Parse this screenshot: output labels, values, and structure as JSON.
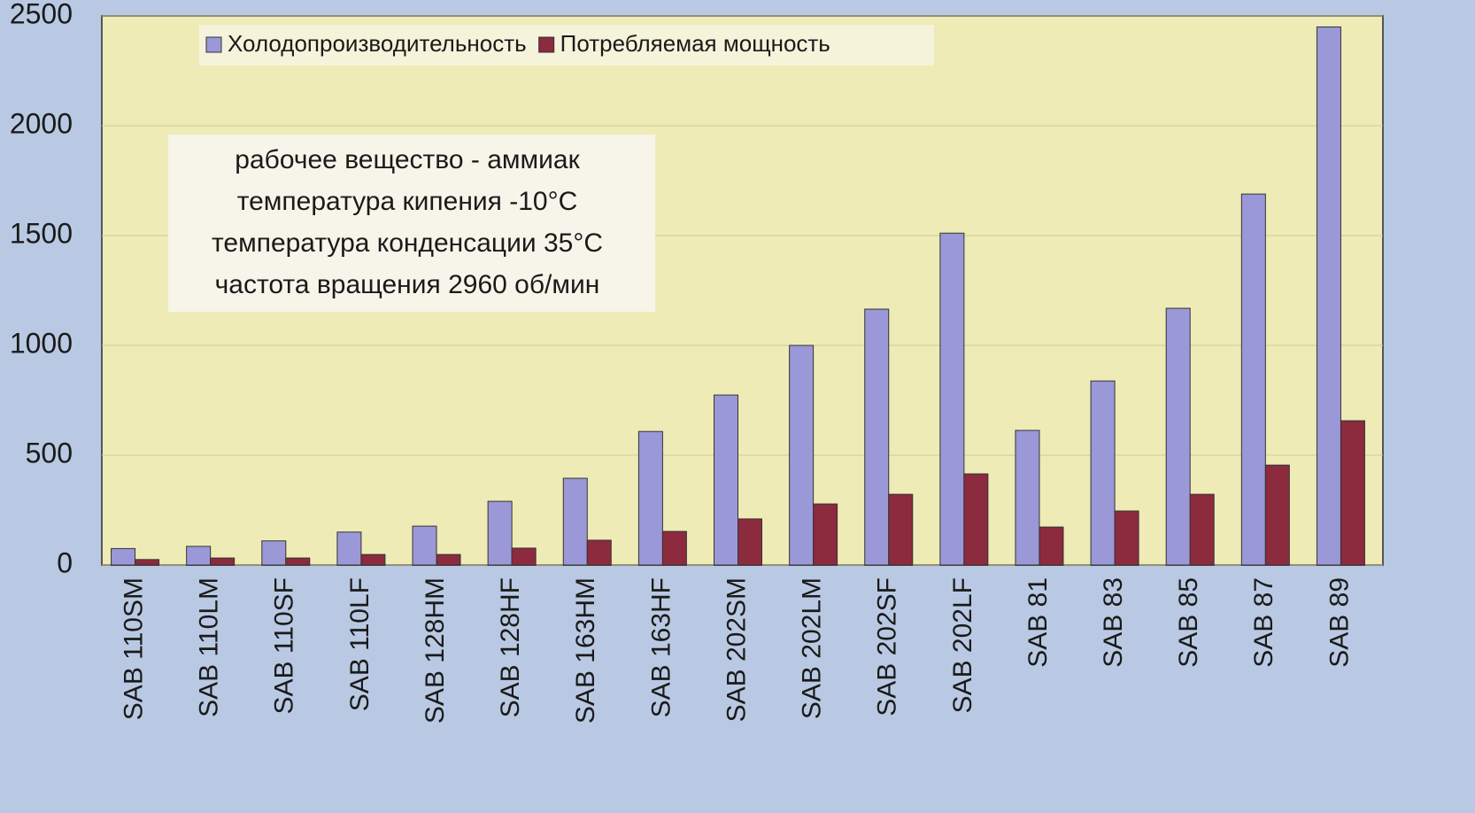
{
  "chart_data": {
    "type": "bar",
    "categories": [
      "SAB 110SM",
      "SAB 110LM",
      "SAB 110SF",
      "SAB 110LF",
      "SAB 128HM",
      "SAB 128HF",
      "SAB 163HM",
      "SAB 163HF",
      "SAB 202SM",
      "SAB 202LM",
      "SAB 202SF",
      "SAB 202LF",
      "SAB 81",
      "SAB 83",
      "SAB 85",
      "SAB 87",
      "SAB 89"
    ],
    "series": [
      {
        "name": "Холодопроизводительность",
        "color": "#9b98d8",
        "values": [
          75,
          85,
          110,
          150,
          177,
          290,
          395,
          608,
          774,
          1000,
          1165,
          1511,
          613,
          838,
          1169,
          1689,
          2450
        ]
      },
      {
        "name": "Потребляемая мощность",
        "color": "#8c2a3e",
        "values": [
          25,
          32,
          32,
          48,
          48,
          77,
          113,
          153,
          210,
          278,
          322,
          415,
          173,
          246,
          322,
          455,
          657
        ]
      }
    ],
    "annotations": [
      "рабочее вещество - аммиак",
      "температура кипения   -10°C",
      "температура конденсации  35°C",
      "частота вращения  2960 об/мин"
    ],
    "ylim": [
      0,
      2500
    ],
    "yticks": [
      0,
      500,
      1000,
      1500,
      2000,
      2500
    ],
    "grid": true,
    "legend": "top-left"
  }
}
